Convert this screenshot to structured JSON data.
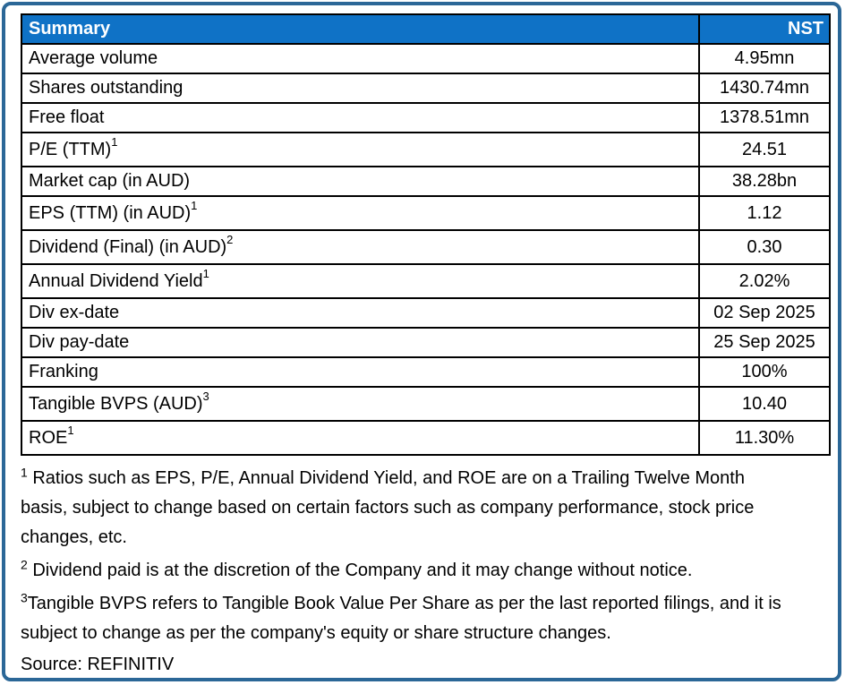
{
  "table": {
    "header": {
      "title": "Summary",
      "ticker": "NST"
    },
    "rows": [
      {
        "label": "Average volume",
        "sup": "",
        "value": "4.95mn"
      },
      {
        "label": "Shares outstanding",
        "sup": "",
        "value": "1430.74mn"
      },
      {
        "label": "Free float",
        "sup": "",
        "value": "1378.51mn"
      },
      {
        "label": "P/E (TTM)",
        "sup": "1",
        "value": "24.51"
      },
      {
        "label": "Market cap (in AUD)",
        "sup": "",
        "value": "38.28bn"
      },
      {
        "label": "EPS (TTM) (in AUD)",
        "sup": "1",
        "value": "1.12"
      },
      {
        "label": "Dividend (Final) (in AUD)",
        "sup": "2",
        "value": "0.30"
      },
      {
        "label": "Annual Dividend Yield",
        "sup": "1",
        "value": "2.02%"
      },
      {
        "label": "Div ex-date",
        "sup": "",
        "value": "02 Sep 2025"
      },
      {
        "label": "Div pay-date",
        "sup": "",
        "value": "25 Sep 2025"
      },
      {
        "label": "Franking",
        "sup": "",
        "value": "100%"
      },
      {
        "label": "Tangible BVPS (AUD)",
        "sup": "3",
        "value": "10.40"
      },
      {
        "label": "ROE",
        "sup": "1",
        "value": "11.30%"
      }
    ]
  },
  "footnotes": [
    {
      "sup": "1",
      "text": " Ratios such as EPS, P/E,  Annual Dividend Yield, and ROE are on a Trailing Twelve Month basis, subject to change based on certain factors such as company performance, stock price changes, etc."
    },
    {
      "sup": "2",
      "text": " Dividend paid is at the discretion of the Company and it may change without notice."
    },
    {
      "sup": "3",
      "text": "Tangible BVPS refers to Tangible Book Value Per Share as per the last reported filings, and it is subject to change as per the company's equity or share structure changes."
    }
  ],
  "source": "Source: REFINITIV",
  "colors": {
    "header_bg": "#0F72C6",
    "header_text": "#FFFFFF",
    "frame_border": "#2B6797",
    "grid": "#000000"
  }
}
